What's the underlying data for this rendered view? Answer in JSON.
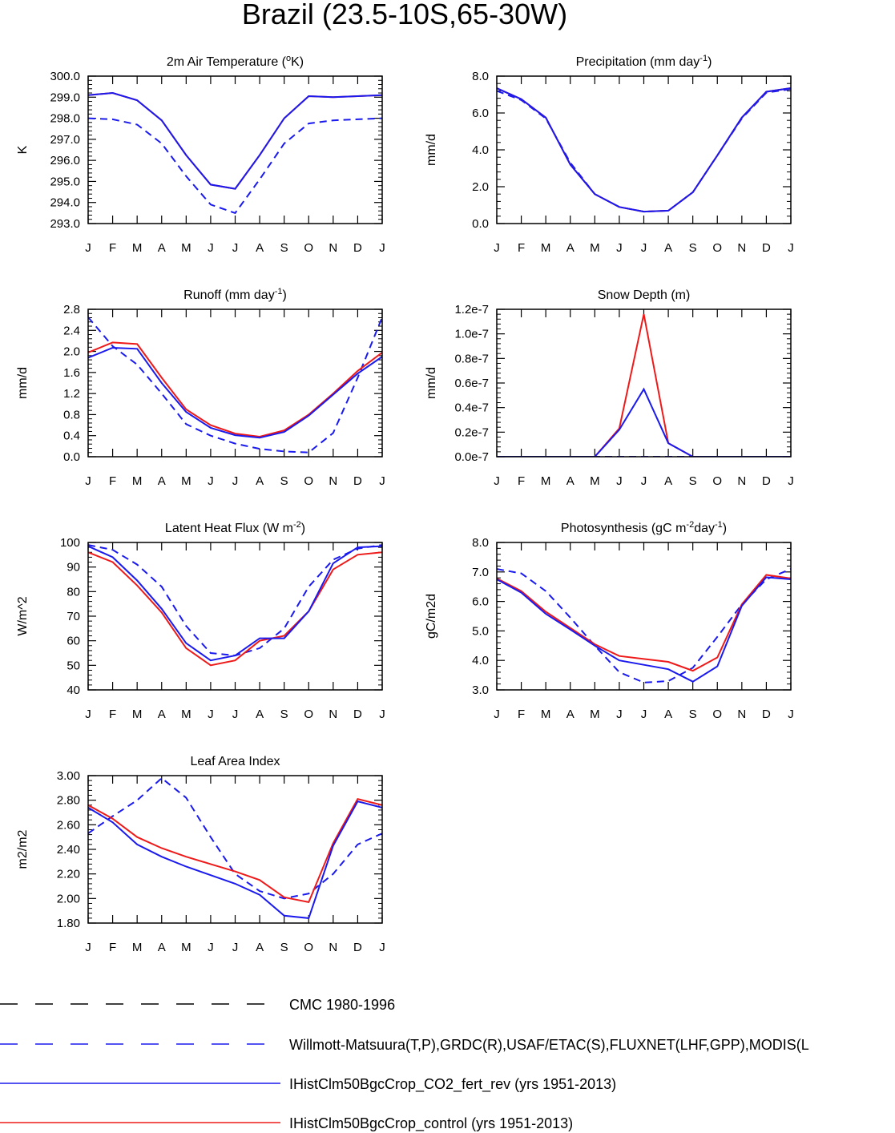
{
  "title": "Brazil (23.5-10S,65-30W)",
  "months": [
    "J",
    "F",
    "M",
    "A",
    "M",
    "J",
    "J",
    "A",
    "S",
    "O",
    "N",
    "D",
    "J"
  ],
  "colors": {
    "obs": "#1a1aee",
    "co2": "#1a1aee",
    "control": "#ee1a1a",
    "cmc": "#000000"
  },
  "legend": [
    {
      "label": "CMC 1980-1996",
      "style": "dash-black"
    },
    {
      "label": "Willmott-Matsuura(T,P),GRDC(R),USAF/ETAC(S),FLUXNET(LHF,GPP),MODIS(L",
      "style": "dash-blue"
    },
    {
      "label": "IHistClm50BgcCrop_CO2_fert_rev (yrs 1951-2013)",
      "style": "solid-blue"
    },
    {
      "label": "IHistClm50BgcCrop_control (yrs 1951-2013)",
      "style": "solid-red"
    }
  ],
  "chart_data": [
    {
      "type": "line",
      "title": "2m Air Temperature (",
      "title_sup": "o",
      "title_after": "K)",
      "ylabel": "K",
      "x": [
        "J",
        "F",
        "M",
        "A",
        "M",
        "J",
        "J",
        "A",
        "S",
        "O",
        "N",
        "D",
        "J"
      ],
      "ylim": [
        293.0,
        300.0
      ],
      "yticks": [
        293.0,
        294.0,
        295.0,
        296.0,
        297.0,
        298.0,
        299.0,
        300.0
      ],
      "yticklabels": [
        "293.0",
        "294.0",
        "295.0",
        "296.0",
        "297.0",
        "298.0",
        "299.0",
        "300.0"
      ],
      "series": [
        {
          "name": "Willmott-Matsuura(T,P),GRDC(R),USAF/ETAC(S),FLUXNET(LHF,GPP),MODIS(L",
          "style": "dash-blue",
          "values": [
            298.0,
            297.95,
            297.7,
            296.8,
            295.25,
            293.9,
            293.5,
            295.1,
            296.8,
            297.75,
            297.9,
            297.95,
            298.0
          ]
        },
        {
          "name": "IHistClm50BgcCrop_control (yrs 1951-2013)",
          "style": "solid-red",
          "values": [
            299.1,
            299.2,
            298.85,
            297.9,
            296.25,
            294.85,
            294.65,
            296.25,
            298.0,
            299.05,
            299.0,
            299.05,
            299.1
          ]
        },
        {
          "name": "IHistClm50BgcCrop_CO2_fert_rev (yrs 1951-2013)",
          "style": "solid-blue",
          "values": [
            299.1,
            299.2,
            298.85,
            297.9,
            296.25,
            294.85,
            294.65,
            296.25,
            298.0,
            299.05,
            299.0,
            299.05,
            299.1
          ]
        }
      ]
    },
    {
      "type": "line",
      "title": "Precipitation (mm day",
      "title_sup": "-1",
      "title_after": ")",
      "ylabel": "mm/d",
      "x": [
        "J",
        "F",
        "M",
        "A",
        "M",
        "J",
        "J",
        "A",
        "S",
        "O",
        "N",
        "D",
        "J"
      ],
      "ylim": [
        0.0,
        8.0
      ],
      "yticks": [
        0,
        2,
        4,
        6,
        8
      ],
      "yticklabels": [
        "0.0",
        "2.0",
        "4.0",
        "6.0",
        "8.0"
      ],
      "series": [
        {
          "name": "Willmott-Matsuura(T,P),GRDC(R),USAF/ETAC(S),FLUXNET(LHF,GPP),MODIS(L",
          "style": "dash-blue",
          "values": [
            7.2,
            6.7,
            5.7,
            3.3,
            1.6,
            0.9,
            0.65,
            0.7,
            1.7,
            3.7,
            5.7,
            7.1,
            7.3
          ]
        },
        {
          "name": "IHistClm50BgcCrop_control (yrs 1951-2013)",
          "style": "solid-red",
          "values": [
            7.35,
            6.75,
            5.75,
            3.2,
            1.6,
            0.9,
            0.65,
            0.7,
            1.7,
            3.7,
            5.75,
            7.15,
            7.35
          ]
        },
        {
          "name": "IHistClm50BgcCrop_CO2_fert_rev (yrs 1951-2013)",
          "style": "solid-blue",
          "values": [
            7.35,
            6.75,
            5.75,
            3.2,
            1.6,
            0.9,
            0.65,
            0.7,
            1.7,
            3.7,
            5.75,
            7.15,
            7.35
          ]
        }
      ]
    },
    {
      "type": "line",
      "title": "Runoff (mm day",
      "title_sup": "-1",
      "title_after": ")",
      "ylabel": "mm/d",
      "x": [
        "J",
        "F",
        "M",
        "A",
        "M",
        "J",
        "J",
        "A",
        "S",
        "O",
        "N",
        "D",
        "J"
      ],
      "ylim": [
        0.0,
        2.8
      ],
      "yticks": [
        0.0,
        0.4,
        0.8,
        1.2,
        1.6,
        2.0,
        2.4,
        2.8
      ],
      "yticklabels": [
        "0.0",
        "0.4",
        "0.8",
        "1.2",
        "1.6",
        "2.0",
        "2.4",
        "2.8"
      ],
      "series": [
        {
          "name": "Willmott-Matsuura(T,P),GRDC(R),USAF/ETAC(S),FLUXNET(LHF,GPP),MODIS(L",
          "style": "dash-blue",
          "values": [
            2.65,
            2.1,
            1.75,
            1.2,
            0.62,
            0.4,
            0.25,
            0.15,
            0.1,
            0.08,
            0.45,
            1.5,
            2.65
          ]
        },
        {
          "name": "IHistClm50BgcCrop_control (yrs 1951-2013)",
          "style": "solid-red",
          "values": [
            1.98,
            2.17,
            2.14,
            1.5,
            0.9,
            0.6,
            0.44,
            0.38,
            0.5,
            0.8,
            1.2,
            1.63,
            1.98
          ]
        },
        {
          "name": "IHistClm50BgcCrop_CO2_fert_rev (yrs 1951-2013)",
          "style": "solid-blue",
          "values": [
            1.88,
            2.07,
            2.05,
            1.4,
            0.85,
            0.55,
            0.41,
            0.36,
            0.47,
            0.78,
            1.18,
            1.58,
            1.9
          ]
        }
      ]
    },
    {
      "type": "line",
      "title": "Snow Depth (m)",
      "title_sup": "",
      "title_after": "",
      "ylabel": "mm/d",
      "x": [
        "J",
        "F",
        "M",
        "A",
        "M",
        "J",
        "J",
        "A",
        "S",
        "O",
        "N",
        "D",
        "J"
      ],
      "ylim": [
        0.0,
        1.2e-07
      ],
      "yticks": [
        0,
        2e-08,
        4e-08,
        6e-08,
        8e-08,
        1e-07,
        1.2e-07
      ],
      "yticklabels": [
        "0.0e-7",
        "0.2e-7",
        "0.4e-7",
        "0.6e-7",
        "0.8e-7",
        "1.0e-7",
        "1.2e-7"
      ],
      "series": [
        {
          "name": "Willmott-Matsuura(T,P),GRDC(R),USAF/ETAC(S),FLUXNET(LHF,GPP),MODIS(L",
          "style": "dash-blue",
          "values": [
            0,
            0,
            0,
            0,
            0,
            0,
            0,
            0,
            0,
            0,
            0,
            0,
            0
          ]
        },
        {
          "name": "IHistClm50BgcCrop_control (yrs 1951-2013)",
          "style": "solid-red",
          "values": [
            0,
            0,
            0,
            0,
            0,
            2.3e-08,
            1.16e-07,
            1.1e-08,
            0,
            0,
            0,
            0,
            0
          ]
        },
        {
          "name": "IHistClm50BgcCrop_CO2_fert_rev (yrs 1951-2013)",
          "style": "solid-blue",
          "values": [
            0,
            0,
            0,
            0,
            0,
            2.2e-08,
            5.5e-08,
            1.1e-08,
            0,
            0,
            0,
            0,
            0
          ]
        }
      ]
    },
    {
      "type": "line",
      "title": "Latent Heat Flux (W m",
      "title_sup": "-2",
      "title_after": ")",
      "ylabel": "W/m^2",
      "x": [
        "J",
        "F",
        "M",
        "A",
        "M",
        "J",
        "J",
        "A",
        "S",
        "O",
        "N",
        "D",
        "J"
      ],
      "ylim": [
        40,
        100
      ],
      "yticks": [
        40,
        50,
        60,
        70,
        80,
        90,
        100
      ],
      "yticklabels": [
        "40",
        "50",
        "60",
        "70",
        "80",
        "90",
        "100"
      ],
      "series": [
        {
          "name": "Willmott-Matsuura(T,P),GRDC(R),USAF/ETAC(S),FLUXNET(LHF,GPP),MODIS(L",
          "style": "dash-blue",
          "values": [
            99,
            97,
            91,
            82,
            66,
            55,
            54,
            57,
            65,
            82,
            93,
            97.5,
            99
          ]
        },
        {
          "name": "IHistClm50BgcCrop_control (yrs 1951-2013)",
          "style": "solid-red",
          "values": [
            96,
            92,
            82.5,
            71.5,
            57,
            50,
            52,
            60,
            62,
            72,
            89,
            95,
            96
          ]
        },
        {
          "name": "IHistClm50BgcCrop_CO2_fert_rev (yrs 1951-2013)",
          "style": "solid-blue",
          "values": [
            98.5,
            94,
            84.5,
            73,
            59,
            52,
            54,
            61,
            61,
            72,
            91.5,
            98,
            98.5
          ]
        }
      ]
    },
    {
      "type": "line",
      "title": "Photosynthesis (gC m",
      "title_sup": "-2",
      "title_after": "day",
      "title_sup2": "-1",
      "title_after2": ")",
      "ylabel": "gC/m2d",
      "x": [
        "J",
        "F",
        "M",
        "A",
        "M",
        "J",
        "J",
        "A",
        "S",
        "O",
        "N",
        "D",
        "J"
      ],
      "ylim": [
        3.0,
        8.0
      ],
      "yticks": [
        3,
        4,
        5,
        6,
        7,
        8
      ],
      "yticklabels": [
        "3.0",
        "4.0",
        "5.0",
        "6.0",
        "7.0",
        "8.0"
      ],
      "series": [
        {
          "name": "Willmott-Matsuura(T,P),GRDC(R),USAF/ETAC(S),FLUXNET(LHF,GPP),MODIS(L",
          "style": "dash-blue",
          "values": [
            7.1,
            6.95,
            6.35,
            5.45,
            4.5,
            3.6,
            3.25,
            3.3,
            3.75,
            4.8,
            5.9,
            6.75,
            7.1
          ]
        },
        {
          "name": "IHistClm50BgcCrop_control (yrs 1951-2013)",
          "style": "solid-red",
          "values": [
            6.78,
            6.35,
            5.65,
            5.1,
            4.55,
            4.15,
            4.05,
            3.95,
            3.65,
            4.1,
            5.9,
            6.9,
            6.78
          ]
        },
        {
          "name": "IHistClm50BgcCrop_CO2_fert_rev (yrs 1951-2013)",
          "style": "solid-blue",
          "values": [
            6.75,
            6.3,
            5.58,
            5.05,
            4.5,
            4.0,
            3.85,
            3.7,
            3.28,
            3.8,
            5.85,
            6.82,
            6.75
          ]
        }
      ]
    },
    {
      "type": "line",
      "title": "Leaf Area Index",
      "title_sup": "",
      "title_after": "",
      "ylabel": "m2/m2",
      "x": [
        "J",
        "F",
        "M",
        "A",
        "M",
        "J",
        "J",
        "A",
        "S",
        "O",
        "N",
        "D",
        "J"
      ],
      "ylim": [
        1.8,
        3.0
      ],
      "yticks": [
        1.8,
        2.0,
        2.2,
        2.4,
        2.6,
        2.8,
        3.0
      ],
      "yticklabels": [
        "1.80",
        "2.00",
        "2.20",
        "2.40",
        "2.60",
        "2.80",
        "3.00"
      ],
      "series": [
        {
          "name": "Willmott-Matsuura(T,P),GRDC(R),USAF/ETAC(S),FLUXNET(LHF,GPP),MODIS(L",
          "style": "dash-blue",
          "values": [
            2.53,
            2.67,
            2.8,
            2.98,
            2.82,
            2.5,
            2.2,
            2.06,
            2.0,
            2.04,
            2.2,
            2.44,
            2.53
          ]
        },
        {
          "name": "IHistClm50BgcCrop_control (yrs 1951-2013)",
          "style": "solid-red",
          "values": [
            2.76,
            2.65,
            2.5,
            2.41,
            2.34,
            2.28,
            2.22,
            2.15,
            2.01,
            1.97,
            2.45,
            2.81,
            2.76
          ]
        },
        {
          "name": "IHistClm50BgcCrop_CO2_fert_rev (yrs 1951-2013)",
          "style": "solid-blue",
          "values": [
            2.74,
            2.62,
            2.44,
            2.34,
            2.26,
            2.19,
            2.12,
            2.03,
            1.86,
            1.84,
            2.43,
            2.79,
            2.74
          ]
        }
      ]
    }
  ]
}
